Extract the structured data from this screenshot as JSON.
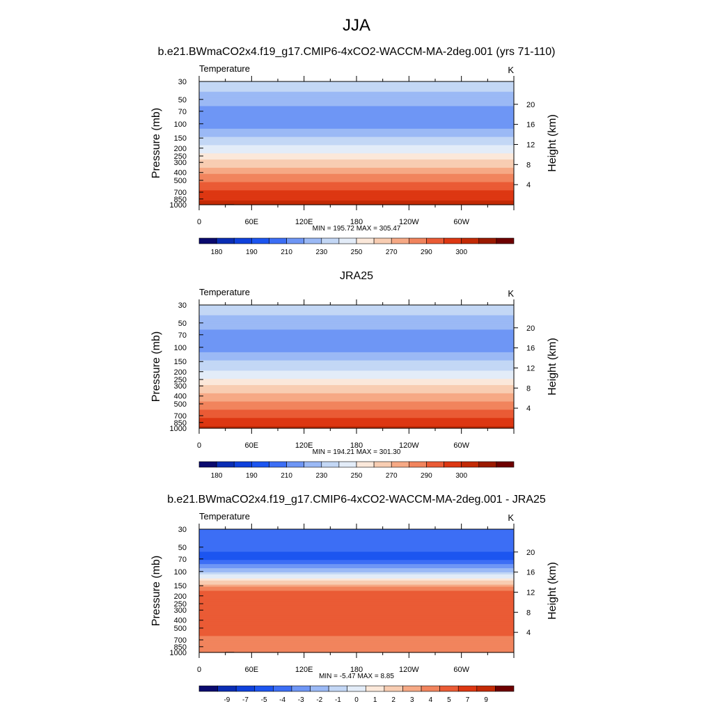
{
  "figure": {
    "title": "JJA",
    "case_title": "b.e21.BWmaCO2x4.f19_g17.CMIP6-4xCO2-WACCM-MA-2deg.001 (yrs 71-110)",
    "obs_title": "JRA25",
    "diff_title": "b.e21.BWmaCO2x4.f19_g17.CMIP6-4xCO2-WACCM-MA-2deg.001 - JRA25"
  },
  "colors": {
    "abs_palette": [
      "#0a0a6e",
      "#0a2db4",
      "#0f41dc",
      "#1c55f0",
      "#3c6ef5",
      "#6e96f5",
      "#9bb9f5",
      "#c3d7f5",
      "#e3ecf8",
      "#fbe8da",
      "#f8cdb2",
      "#f6a985",
      "#f1845d",
      "#ea5b35",
      "#dd3712",
      "#c32a05",
      "#9b1a00",
      "#6e0000"
    ],
    "diff_palette": [
      "#0a0a6e",
      "#0a2db4",
      "#0f41dc",
      "#1c55f0",
      "#3c6ef5",
      "#6e96f5",
      "#9bb9f5",
      "#c3d7f5",
      "#e3ecf8",
      "#fbe8da",
      "#f8cdb2",
      "#f6a985",
      "#f1845d",
      "#ea5b35",
      "#dd3712",
      "#c32a05",
      "#6e0000"
    ],
    "land": "#000000"
  },
  "chart_data": [
    {
      "type": "heatmap",
      "panel": "model",
      "left_label": "Temperature",
      "right_label": "K",
      "ylabel": "Pressure (mb)",
      "ylabel_right": "Height (km)",
      "xlabel": "",
      "x_ticks": [
        "0",
        "60E",
        "120E",
        "180",
        "120W",
        "60W"
      ],
      "x_range": [
        0,
        360
      ],
      "y_ticks": [
        "30",
        "50",
        "70",
        "100",
        "150",
        "200",
        "250",
        "300",
        "400",
        "500",
        "700",
        "850",
        "1000"
      ],
      "y_ticks_right": [
        "20",
        "16",
        "12",
        "8",
        "4"
      ],
      "ylim": [
        1000,
        30
      ],
      "stats": "MIN = 195.72  MAX = 305.47",
      "colorbar_labels": [
        "180",
        "190",
        "210",
        "230",
        "250",
        "270",
        "290",
        "300"
      ],
      "profile_levels": [
        30,
        50,
        70,
        100,
        150,
        200,
        250,
        300,
        400,
        500,
        700,
        850,
        1000
      ],
      "profile_values": [
        214,
        207,
        203,
        202,
        211,
        224,
        234,
        243,
        257,
        267,
        281,
        289,
        296
      ]
    },
    {
      "type": "heatmap",
      "panel": "obs",
      "left_label": "Temperature",
      "right_label": "K",
      "ylabel": "Pressure (mb)",
      "ylabel_right": "Height (km)",
      "xlabel": "",
      "x_ticks": [
        "0",
        "60E",
        "120E",
        "180",
        "120W",
        "60W"
      ],
      "x_range": [
        0,
        360
      ],
      "y_ticks": [
        "30",
        "50",
        "70",
        "100",
        "150",
        "200",
        "250",
        "300",
        "400",
        "500",
        "700",
        "850",
        "1000"
      ],
      "y_ticks_right": [
        "20",
        "16",
        "12",
        "8",
        "4"
      ],
      "ylim": [
        1000,
        30
      ],
      "stats": "MIN = 194.21  MAX = 301.30",
      "colorbar_labels": [
        "180",
        "190",
        "210",
        "230",
        "250",
        "270",
        "290",
        "300"
      ],
      "profile_levels": [
        30,
        50,
        70,
        100,
        150,
        200,
        250,
        300,
        400,
        500,
        700,
        850,
        1000
      ],
      "profile_values": [
        214,
        207,
        203,
        202,
        211,
        222,
        232,
        240,
        253,
        263,
        277,
        286,
        292
      ]
    },
    {
      "type": "heatmap",
      "panel": "difference",
      "left_label": "Temperature",
      "right_label": "K",
      "ylabel": "Pressure (mb)",
      "ylabel_right": "Height (km)",
      "xlabel": "",
      "x_ticks": [
        "0",
        "60E",
        "120E",
        "180",
        "120W",
        "60W"
      ],
      "x_range": [
        0,
        360
      ],
      "y_ticks": [
        "30",
        "50",
        "70",
        "100",
        "150",
        "200",
        "250",
        "300",
        "400",
        "500",
        "700",
        "850",
        "1000"
      ],
      "y_ticks_right": [
        "20",
        "16",
        "12",
        "8",
        "4"
      ],
      "ylim": [
        1000,
        30
      ],
      "stats": "MIN =  -5.47  MAX =   8.85",
      "colorbar_labels": [
        "-9",
        "-7",
        "-5",
        "-4",
        "-3",
        "-2",
        "-1",
        "0",
        "1",
        "2",
        "3",
        "4",
        "5",
        "7",
        "9"
      ],
      "profile_levels": [
        30,
        50,
        70,
        100,
        150,
        200,
        250,
        300,
        400,
        500,
        700,
        850,
        1000
      ],
      "profile_values": [
        -3.2,
        -3.8,
        -4.3,
        -1.0,
        3.4,
        6.5,
        6.8,
        6.5,
        5.5,
        5.5,
        4.7,
        4.2,
        4.0
      ]
    }
  ]
}
